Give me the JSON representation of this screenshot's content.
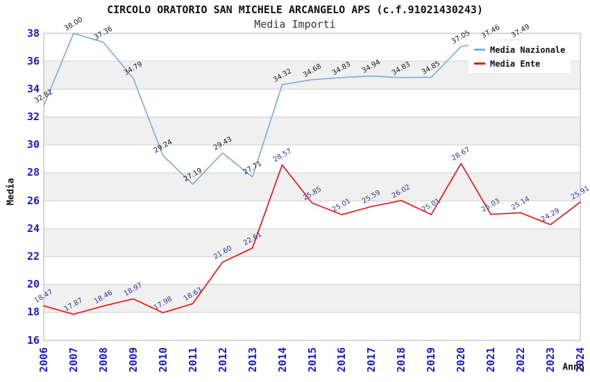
{
  "chart_data": {
    "type": "line",
    "title": "CIRCOLO ORATORIO SAN MICHELE ARCANGELO APS (c.f.91021430243)",
    "subtitle": "Media Importi",
    "xlabel": "Anno",
    "ylabel": "Media",
    "ylim": [
      16,
      38
    ],
    "ytick_step": 2,
    "grid": true,
    "plot_bands_alternating": true,
    "legend_position": "top-right",
    "categories": [
      "2006",
      "2007",
      "2008",
      "2009",
      "2010",
      "2011",
      "2012",
      "2013",
      "2014",
      "2015",
      "2016",
      "2017",
      "2018",
      "2019",
      "2020",
      "2021",
      "2022",
      "2023",
      "2024"
    ],
    "series": [
      {
        "name": "Media Nazionale",
        "color": "#7aafe6",
        "label_color": "#1a1a1a",
        "values": [
          32.82,
          38.0,
          37.36,
          34.79,
          29.24,
          27.19,
          29.43,
          27.71,
          34.32,
          34.68,
          34.83,
          34.94,
          34.83,
          34.85,
          37.05,
          37.46,
          37.49
        ]
      },
      {
        "name": "Media Ente",
        "color": "#ee1515",
        "label_color": "#333399",
        "values": [
          18.47,
          17.87,
          18.46,
          18.97,
          17.98,
          18.63,
          21.6,
          22.61,
          28.57,
          25.85,
          25.01,
          25.59,
          26.02,
          25.01,
          28.67,
          25.03,
          25.14,
          24.29,
          25.91
        ]
      }
    ],
    "colors": {
      "band": "#f0f0f0",
      "grid": "#cfcfcf",
      "border": "#b0b0b0",
      "tick_label": "#1a1ad6",
      "title": "#111111"
    },
    "notes": "Media Nazionale 2021 data label partially occluded by legend; value estimated. Series ends at 2022."
  }
}
